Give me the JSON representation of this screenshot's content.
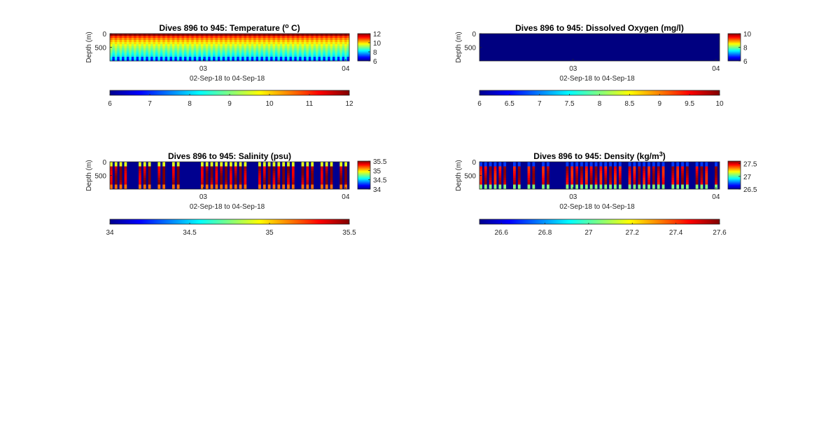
{
  "figure": {
    "background": "#ffffff",
    "axis_color": "#262626",
    "empty_color": "#00008f"
  },
  "chart_data": [
    {
      "type": "heatmap",
      "title": "Dives 896 to 945: Temperature (° C)",
      "title_pre": "Dives 896 to 945: Temperature (",
      "title_sup": "o",
      "title_post": " C)",
      "ylabel": "Depth (m)",
      "xlabel": "02-Sep-18 to 04-Sep-18",
      "xticks": [
        "03",
        "04"
      ],
      "yticks": [
        "0",
        "500"
      ],
      "ylim": [
        0,
        1000
      ],
      "clim": [
        6,
        12
      ],
      "colorbar_right_ticks": [
        "12",
        "10",
        "8",
        "6"
      ],
      "colorbar_bottom_ticks": [
        "6",
        "7",
        "8",
        "9",
        "10",
        "11",
        "12"
      ],
      "pattern": "temperature",
      "profiles": 50,
      "surface_value": 11.8,
      "deep_value": 8.0
    },
    {
      "type": "heatmap",
      "title": "Dives 896 to 945: Dissolved Oxygen (mg/l)",
      "ylabel": "Depth (m)",
      "xlabel": "02-Sep-18 to 04-Sep-18",
      "xticks": [
        "03",
        "04"
      ],
      "yticks": [
        "0",
        "500"
      ],
      "ylim": [
        0,
        1000
      ],
      "clim": [
        6,
        10
      ],
      "colorbar_right_ticks": [
        "10",
        "8",
        "6"
      ],
      "colorbar_bottom_ticks": [
        "6",
        "6.5",
        "7",
        "7.5",
        "8",
        "8.5",
        "9",
        "9.5",
        "10"
      ],
      "pattern": "uniform",
      "uniform_value": 6
    },
    {
      "type": "heatmap",
      "title": "Dives 896 to 945: Salinity (psu)",
      "ylabel": "Depth (m)",
      "xlabel": "02-Sep-18 to 04-Sep-18",
      "xticks": [
        "03",
        "04"
      ],
      "yticks": [
        "0",
        "500"
      ],
      "ylim": [
        0,
        1000
      ],
      "clim": [
        34,
        35.5
      ],
      "colorbar_right_ticks": [
        "35.5",
        "35",
        "34.5",
        "34"
      ],
      "colorbar_bottom_ticks": [
        "34",
        "34.5",
        "35",
        "35.5"
      ],
      "pattern": "gappy",
      "surface_value": 34.9,
      "deep_value": 35.45
    },
    {
      "type": "heatmap",
      "title": "Dives 896 to 945: Density (kg/m³)",
      "title_pre": "Dives 896 to 945: Density (kg/m",
      "title_sup": "3",
      "title_post": ")",
      "ylabel": "Depth (m)",
      "xlabel": "02-Sep-18 to 04-Sep-18",
      "xticks": [
        "03",
        "04"
      ],
      "yticks": [
        "0",
        "500"
      ],
      "ylim": [
        0,
        1000
      ],
      "clim": [
        26.5,
        27.6
      ],
      "colorbar_right_ticks": [
        "27.5",
        "27",
        "26.5"
      ],
      "colorbar_bottom_ticks": [
        "26.6",
        "26.8",
        "27",
        "27.2",
        "27.4",
        "27.6"
      ],
      "pattern": "gappy",
      "surface_value": 26.7,
      "deep_value": 27.5
    }
  ]
}
